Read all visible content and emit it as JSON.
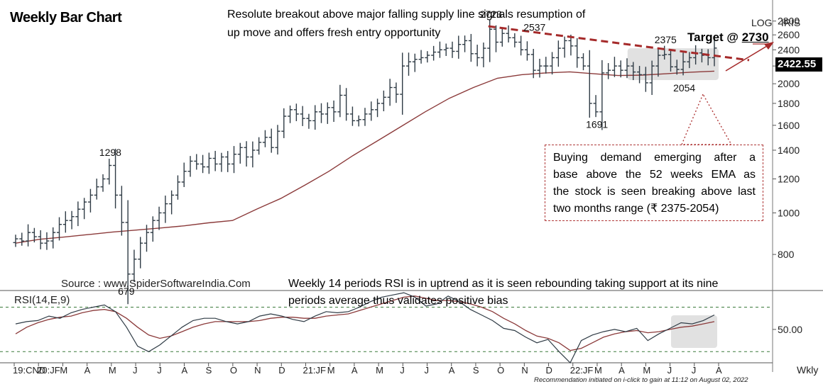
{
  "header": {
    "title": "Weekly Bar Chart",
    "headline_line1": "Resolute breakout above major falling supply line signals resumption of",
    "headline_line2": "up move and offers fresh entry opportunity",
    "target_prefix": "Target @ ",
    "target_value": "2730",
    "scale_mode": "LOG",
    "symbol": "IRIS",
    "last_price": "2422.55",
    "source": "Source : www.SpiderSoftwareIndia.Com",
    "footnote": "Recommendation initiated on i-click to gain at 11:12 on August 02, 2022"
  },
  "annotation": {
    "lines": [
      "Buying demand emerging after a",
      "base above the 52 weeks EMA as",
      "the stock is seen breaking above last",
      "two months range (₹ 2375-2054)"
    ]
  },
  "rsi_note": {
    "line1": "Weekly 14 periods RSI is in uptrend as it is seen rebounding taking support at its nine",
    "line2": "periods average thus validates positive bias"
  },
  "chart_data": [
    {
      "type": "bar",
      "subtype": "ohlc-weekly",
      "title": "Weekly Bar Chart",
      "y_scale": "log",
      "ylim": [
        690,
        2950
      ],
      "y_ticks": [
        800,
        1000,
        1200,
        1400,
        1600,
        1800,
        2000,
        2200,
        2400,
        2600,
        2800
      ],
      "x_tick_labels": [
        "19:CND",
        "20:JF",
        "M",
        "A",
        "M",
        "J",
        "J",
        "A",
        "S",
        "O",
        "N",
        "D",
        "21:JF",
        "M",
        "A",
        "M",
        "J",
        "J",
        "A",
        "S",
        "O",
        "N",
        "D",
        "22:JF",
        "M",
        "A",
        "M",
        "J",
        "J",
        "A"
      ],
      "x_axis_unit": "Wkly",
      "series": [
        {
          "name": "Price (weekly close)",
          "values": [
            870,
            860,
            900,
            880,
            850,
            860,
            900,
            940,
            960,
            980,
            1020,
            1060,
            1100,
            1150,
            1200,
            1290,
            1100,
            950,
            720,
            780,
            850,
            900,
            960,
            1000,
            1050,
            1100,
            1180,
            1250,
            1320,
            1300,
            1280,
            1340,
            1300,
            1350,
            1300,
            1370,
            1420,
            1350,
            1400,
            1460,
            1500,
            1420,
            1550,
            1680,
            1740,
            1700,
            1660,
            1640,
            1720,
            1700,
            1760,
            1720,
            1880,
            1700,
            1640,
            1650,
            1700,
            1740,
            1800,
            1860,
            1960,
            1890,
            2200,
            2250,
            2280,
            2300,
            2330,
            2370,
            2400,
            2420,
            2380,
            2470,
            2520,
            2350,
            2300,
            2420,
            2680,
            2500,
            2620,
            2560,
            2500,
            2400,
            2340,
            2150,
            2200,
            2200,
            2300,
            2420,
            2520,
            2450,
            2300,
            2200,
            1800,
            1720,
            2120,
            2150,
            2200,
            2150,
            2200,
            2130,
            2100,
            2010,
            2200,
            2330,
            2340,
            2190,
            2160,
            2250,
            2300,
            2360,
            2330,
            2300,
            2422.55
          ]
        },
        {
          "name": "52 weeks EMA",
          "values": [
            850,
            868,
            878,
            890,
            902,
            912,
            922,
            933,
            948,
            960,
            1020,
            1080,
            1160,
            1250,
            1360,
            1470,
            1590,
            1720,
            1850,
            1960,
            2060,
            2100,
            2120,
            2132,
            2110,
            2090,
            2095,
            2110,
            2128,
            2140
          ]
        }
      ],
      "annotations": [
        {
          "label": "1298",
          "x": "20:JF",
          "y": 1298
        },
        {
          "label": "679",
          "x": "M",
          "y": 679
        },
        {
          "label": "2723",
          "x": "S",
          "y": 2723
        },
        {
          "label": "2537",
          "x": "N",
          "y": 2537
        },
        {
          "label": "1691",
          "x": "22:JF",
          "y": 1691
        },
        {
          "label": "2375",
          "x": "M",
          "y": 2375
        },
        {
          "label": "2054",
          "x": "J",
          "y": 2054
        }
      ],
      "supply_line": {
        "from": 2723,
        "to": 2330,
        "style": "dashed",
        "color": "#a52a2a"
      },
      "target": 2730
    },
    {
      "type": "line",
      "title": "RSI(14,E,9)",
      "ylim": [
        20,
        85
      ],
      "y_ticks": [
        50.0
      ],
      "reference_levels": [
        30,
        70
      ],
      "series": [
        {
          "name": "RSI(14)",
          "values": [
            55,
            57,
            58,
            62,
            60,
            65,
            68,
            70,
            72,
            66,
            52,
            35,
            30,
            36,
            44,
            52,
            58,
            60,
            60,
            57,
            55,
            57,
            62,
            64,
            62,
            59,
            57,
            62,
            66,
            65,
            66,
            70,
            75,
            79,
            81,
            83,
            79,
            71,
            73,
            80,
            75,
            68,
            63,
            58,
            51,
            49,
            43,
            38,
            41,
            30,
            20,
            40,
            45,
            48,
            50,
            48,
            51,
            40,
            46,
            51,
            56,
            55,
            58,
            63
          ]
        },
        {
          "name": "RSI average (9)",
          "values": [
            46,
            52,
            56,
            59,
            61,
            62,
            65,
            67,
            68,
            66,
            60,
            52,
            45,
            42,
            44,
            48,
            52,
            55,
            57,
            57,
            57,
            57,
            58,
            60,
            61,
            61,
            60,
            60,
            62,
            63,
            64,
            67,
            70,
            73,
            76,
            79,
            80,
            78,
            76,
            76,
            75,
            73,
            70,
            66,
            60,
            55,
            49,
            44,
            42,
            38,
            31,
            33,
            38,
            43,
            46,
            48,
            49,
            47,
            48,
            50,
            52,
            53,
            55,
            57
          ]
        }
      ]
    }
  ]
}
